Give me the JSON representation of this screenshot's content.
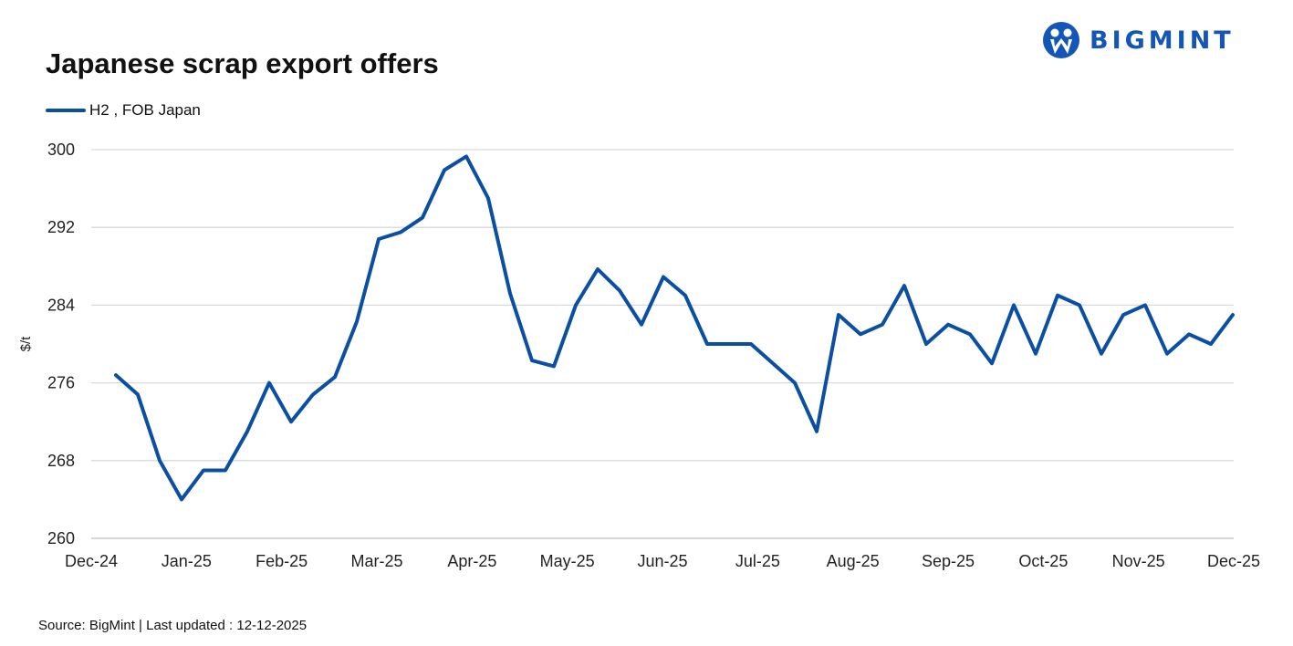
{
  "title": "Japanese scrap export offers",
  "brand": "BIGMINT",
  "source": "Source: BigMint  | Last updated : 12-12-2025",
  "colors": {
    "line": "#0a4fa3",
    "grid": "#d9d9d9",
    "brand": "#1456b8"
  },
  "chart_data": {
    "type": "line",
    "title": "Japanese scrap export offers",
    "xlabel": "",
    "ylabel": "$/t",
    "ylim": [
      260,
      300
    ],
    "yticks": [
      260,
      268,
      276,
      284,
      292,
      300
    ],
    "xticks": [
      "Dec-24",
      "Jan-25",
      "Feb-25",
      "Mar-25",
      "Apr-25",
      "May-25",
      "Jun-25",
      "Jul-25",
      "Aug-25",
      "Sep-25",
      "Oct-25",
      "Nov-25",
      "Dec-25"
    ],
    "grid": true,
    "legend_position": "top-left",
    "series": [
      {
        "name": "H2 , FOB Japan",
        "values": [
          276.8,
          274.8,
          268,
          264,
          267,
          267,
          271,
          276,
          272,
          274.8,
          276.6,
          282.3,
          290.8,
          291.5,
          293,
          297.9,
          299.3,
          295,
          285.2,
          278.3,
          277.7,
          284,
          287.7,
          285.5,
          282,
          286.9,
          285,
          280,
          280,
          280,
          278,
          276,
          271,
          283,
          281,
          282,
          286,
          280,
          282,
          281,
          278,
          284,
          279,
          285,
          284,
          279,
          283,
          284,
          279,
          281,
          280,
          283
        ]
      }
    ]
  }
}
